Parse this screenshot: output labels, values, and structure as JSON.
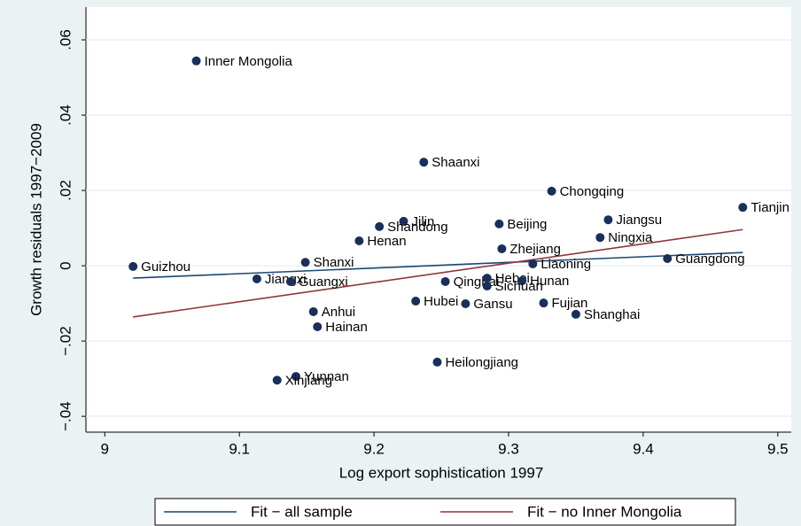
{
  "chart_data": {
    "type": "scatter",
    "xlabel": "Log export sophistication 1997",
    "ylabel": "Growth residuals 1997−2009",
    "xlim": [
      8.986,
      9.51
    ],
    "ylim": [
      -0.0442,
      0.0687
    ],
    "xticks": [
      9,
      9.1,
      9.2,
      9.3,
      9.4,
      9.5
    ],
    "yticks": [
      {
        "value": -0.04,
        "label": "−.04"
      },
      {
        "value": -0.02,
        "label": "−.02"
      },
      0,
      {
        "value": 0.02,
        "label": ".02"
      },
      {
        "value": 0.04,
        "label": ".04"
      },
      {
        "value": 0.06,
        "label": ".06"
      }
    ],
    "grid": true,
    "legend": "bottom",
    "points": {
      "color": "#1a2f5a",
      "labels": [
        "Inner Mongolia",
        "Shaanxi",
        "Chongqing",
        "Tianjin",
        "Jiangsu",
        "Beijing",
        "Jilin",
        "Shandong",
        "Ningxia",
        "Henan",
        "Zhejiang",
        "Guizhou",
        "Shanxi",
        "Liaoning",
        "Guangdong",
        "Jiangxi",
        "Guangxi",
        "Qinghai",
        "Hebei",
        "Hunan",
        "Sichuan",
        "Anhui",
        "Hubei",
        "Gansu",
        "Fujian",
        "Shanghai",
        "Hainan",
        "Heilongjiang",
        "Yunnan",
        "Xinjiang"
      ],
      "x": [
        9.068,
        9.237,
        9.332,
        9.474,
        9.374,
        9.293,
        9.222,
        9.204,
        9.368,
        9.189,
        9.295,
        9.021,
        9.149,
        9.318,
        9.418,
        9.113,
        9.138,
        9.253,
        9.284,
        9.31,
        9.284,
        9.155,
        9.231,
        9.268,
        9.326,
        9.35,
        9.158,
        9.247,
        9.142,
        9.128
      ],
      "values": [
        0.0544,
        0.0275,
        0.0198,
        0.0155,
        0.0122,
        0.0111,
        0.0118,
        0.0104,
        0.0075,
        0.0066,
        0.0045,
        -0.0002,
        0.0009,
        0.0005,
        0.0019,
        -0.0035,
        -0.0042,
        -0.0042,
        -0.0033,
        -0.004,
        -0.0054,
        -0.0122,
        -0.0094,
        -0.0101,
        -0.0099,
        -0.0129,
        -0.0162,
        -0.0256,
        -0.0294,
        -0.0304
      ]
    },
    "series": [
      {
        "name": "Fit − all sample",
        "color": "#1a476f",
        "x": [
          9.021,
          9.474
        ],
        "values": [
          -0.0033,
          0.0035
        ]
      },
      {
        "name": "Fit − no Inner Mongolia",
        "color": "#90353b",
        "x": [
          9.021,
          9.474
        ],
        "values": [
          -0.0136,
          0.0096
        ]
      }
    ]
  }
}
